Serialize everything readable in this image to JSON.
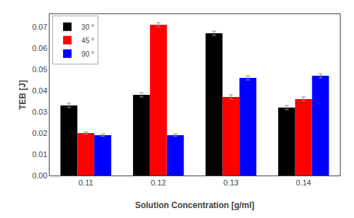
{
  "chart_data": {
    "type": "bar",
    "categories": [
      "0.11",
      "0.12",
      "0.13",
      "0.14"
    ],
    "series": [
      {
        "name": "30 °",
        "color": "#000000",
        "values": [
          0.033,
          0.038,
          0.067,
          0.032
        ],
        "errors": [
          0.001,
          0.001,
          0.001,
          0.001
        ]
      },
      {
        "name": "45 °",
        "color": "#ff0000",
        "values": [
          0.02,
          0.071,
          0.037,
          0.036
        ],
        "errors": [
          0.0005,
          0.001,
          0.001,
          0.001
        ]
      },
      {
        "name": "90 °",
        "color": "#0000ff",
        "values": [
          0.019,
          0.019,
          0.046,
          0.047
        ],
        "errors": [
          0.0005,
          0.0005,
          0.001,
          0.001
        ]
      }
    ],
    "xlabel": "Solution Concentration [g/ml]",
    "ylabel": "TEB [J]",
    "ylim": [
      0.0,
      0.076
    ],
    "yticks": [
      {
        "value": 0.0,
        "label": "0.00"
      },
      0.01,
      0.02,
      0.03,
      0.04,
      0.05,
      0.06,
      0.07
    ],
    "grid": false,
    "legend": "upper left"
  }
}
